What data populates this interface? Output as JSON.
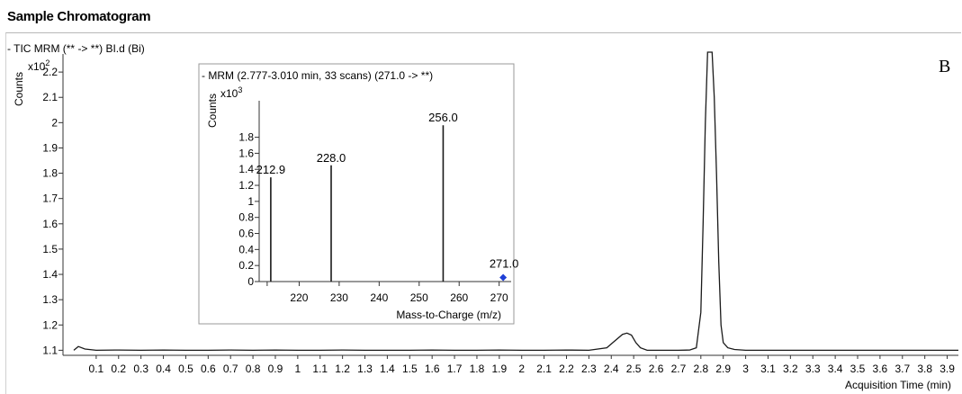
{
  "page": {
    "title": "Sample Chromatogram"
  },
  "chart_data": [
    {
      "type": "line",
      "header": "- TIC MRM (** -> **) BI.d (Bi)",
      "corner_label": "B",
      "ylabel": "Counts",
      "y_multiplier": "x10",
      "y_multiplier_exp": "2",
      "xlabel": "Acquisition Time (min)",
      "xlim": [
        0,
        3.95
      ],
      "ylim": [
        1.08,
        2.3
      ],
      "x_ticks": [
        0.1,
        0.2,
        0.3,
        0.4,
        0.5,
        0.6,
        0.7,
        0.8,
        0.9,
        1,
        1.1,
        1.2,
        1.3,
        1.4,
        1.5,
        1.6,
        1.7,
        1.8,
        1.9,
        2,
        2.1,
        2.2,
        2.3,
        2.4,
        2.5,
        2.6,
        2.7,
        2.8,
        2.9,
        3,
        3.1,
        3.2,
        3.3,
        3.4,
        3.5,
        3.6,
        3.7,
        3.8,
        3.9
      ],
      "x_tick_labels": [
        "0.1",
        "0.2",
        "0.3",
        "0.4",
        "0.5",
        "0.6",
        "0.7",
        "0.8",
        "0.9",
        "1",
        "1.1",
        "1.2",
        "1.3",
        "1.4",
        "1.5",
        "1.6",
        "1.7",
        "1.8",
        "1.9",
        "2",
        "2.1",
        "2.2",
        "2.3",
        "2.4",
        "2.5",
        "2.6",
        "2.7",
        "2.8",
        "2.9",
        "3",
        "3.1",
        "3.2",
        "3.3",
        "3.4",
        "3.5",
        "3.6",
        "3.7",
        "3.8",
        "3.9"
      ],
      "y_ticks": [
        1.1,
        1.2,
        1.3,
        1.4,
        1.5,
        1.6,
        1.7,
        1.8,
        1.9,
        2,
        2.1,
        2.2
      ],
      "y_tick_labels": [
        "1.1",
        "1.2",
        "1.3",
        "1.4",
        "1.5",
        "1.6",
        "1.7",
        "1.8",
        "1.9",
        "2",
        "2.1",
        "2.2"
      ],
      "series": [
        {
          "x": [
            0.0,
            0.02,
            0.05,
            0.1,
            0.2,
            0.3,
            0.4,
            0.5,
            0.6,
            0.7,
            0.8,
            0.9,
            1.0,
            1.1,
            1.2,
            1.3,
            1.4,
            1.5,
            1.6,
            1.7,
            1.8,
            1.9,
            2.0,
            2.1,
            2.2,
            2.3,
            2.38,
            2.42,
            2.45,
            2.47,
            2.49,
            2.51,
            2.53,
            2.56,
            2.6,
            2.7,
            2.75,
            2.78,
            2.8,
            2.81,
            2.82,
            2.83,
            2.84,
            2.85,
            2.86,
            2.87,
            2.88,
            2.89,
            2.9,
            2.92,
            2.95,
            3.0,
            3.1,
            3.2,
            3.3,
            3.4,
            3.5,
            3.6,
            3.7,
            3.8,
            3.9,
            3.95
          ],
          "y": [
            1.1,
            1.115,
            1.105,
            1.1,
            1.101,
            1.1,
            1.101,
            1.1,
            1.1,
            1.101,
            1.1,
            1.101,
            1.1,
            1.1,
            1.101,
            1.1,
            1.1,
            1.1,
            1.101,
            1.1,
            1.1,
            1.101,
            1.1,
            1.1,
            1.101,
            1.1,
            1.11,
            1.14,
            1.163,
            1.168,
            1.16,
            1.13,
            1.11,
            1.1,
            1.1,
            1.1,
            1.101,
            1.11,
            1.25,
            1.6,
            2.0,
            2.3,
            2.35,
            2.3,
            2.1,
            1.8,
            1.45,
            1.2,
            1.13,
            1.11,
            1.103,
            1.1,
            1.1,
            1.1,
            1.1,
            1.1,
            1.1,
            1.1,
            1.1,
            1.1,
            1.1,
            1.1
          ]
        }
      ]
    },
    {
      "type": "bar",
      "header": "- MRM (2.777-3.010 min, 33 scans) (271.0 -> **)",
      "ylabel": "Counts",
      "y_multiplier": "x10",
      "y_multiplier_exp": "3",
      "xlabel": "Mass-to-Charge (m/z)",
      "xlim": [
        210,
        273
      ],
      "ylim": [
        0,
        2.3
      ],
      "x_ticks": [
        220,
        230,
        240,
        250,
        260,
        270
      ],
      "x_tick_labels": [
        "220",
        "230",
        "240",
        "250",
        "260",
        "270"
      ],
      "y_ticks": [
        0,
        0.2,
        0.4,
        0.6,
        0.8,
        1,
        1.2,
        1.4,
        1.6,
        1.8
      ],
      "y_tick_labels": [
        "0",
        "0.2",
        "0.4",
        "0.6",
        "0.8",
        "1",
        "1.2",
        "1.4",
        "1.6",
        "1.8"
      ],
      "bars": [
        {
          "x": 212.9,
          "value": 1.3,
          "label": "212.9"
        },
        {
          "x": 228.0,
          "value": 1.45,
          "label": "228.0"
        },
        {
          "x": 256.0,
          "value": 1.95,
          "label": "256.0"
        }
      ],
      "marker": {
        "x": 271.0,
        "value": 0.05,
        "label": "271.0",
        "color": "#1f3fd6"
      }
    }
  ],
  "colors": {
    "line": "#1a1a1a",
    "axis": "#333333",
    "marker": "#1f3fd6"
  }
}
